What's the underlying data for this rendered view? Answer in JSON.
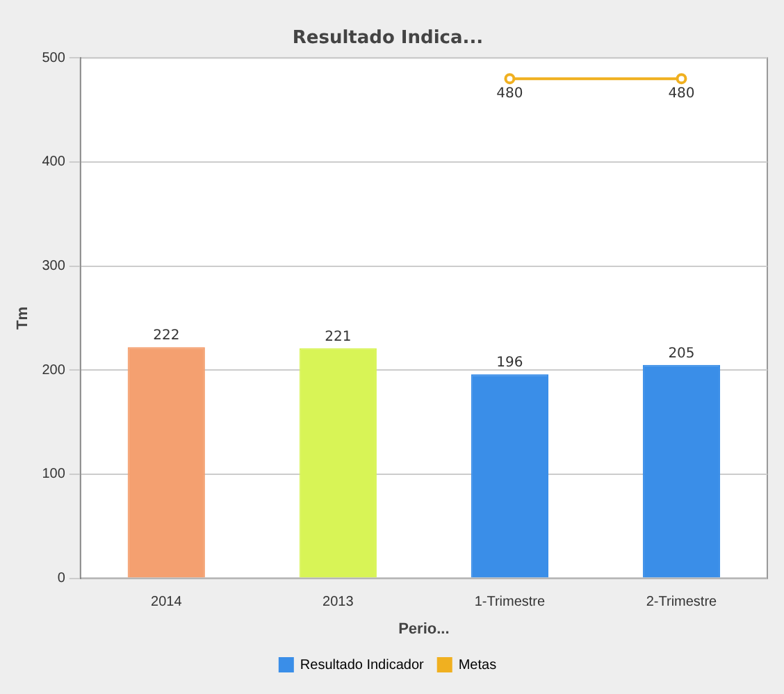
{
  "chart_data": {
    "type": "bar",
    "title": "Resultado Indica...",
    "xlabel": "Perio...",
    "ylabel": "Tm",
    "categories": [
      "2014",
      "2013",
      "1-Trimestre",
      "2-Trimestre"
    ],
    "series": [
      {
        "name": "Resultado Indicador",
        "color": "#3a8ee8",
        "colors": [
          "#f4a070",
          "#d8f456",
          "#3a8ee8",
          "#3a8ee8"
        ],
        "values": [
          222,
          221,
          196,
          205
        ]
      },
      {
        "name": "Metas",
        "type": "line",
        "color": "#f0b020",
        "values": [
          null,
          null,
          480,
          480
        ]
      }
    ],
    "ylim": [
      0,
      500
    ],
    "yticks": [
      0,
      100,
      200,
      300,
      400,
      500
    ],
    "grid": "y",
    "legend": "bottom",
    "marker": "circle",
    "data_labels": true
  }
}
